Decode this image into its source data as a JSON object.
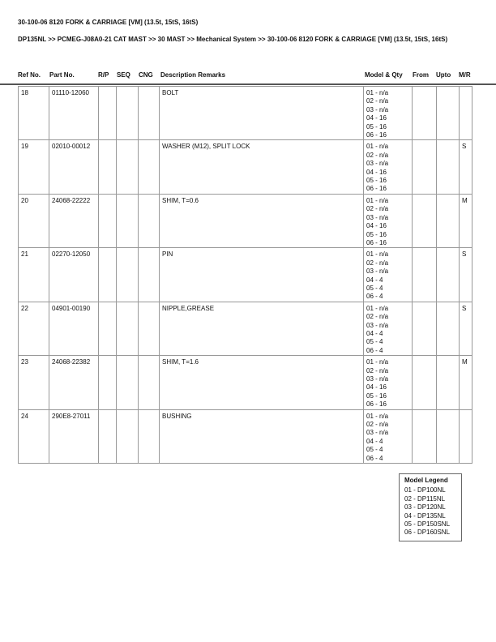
{
  "title": "30-100-06 8120 FORK & CARRIAGE [VM] (13.5t, 15tS, 16tS)",
  "breadcrumb": "DP135NL >> PCMEG-J08A0-21 CAT MAST >> 30 MAST >> Mechanical System >> 30-100-06 8120 FORK & CARRIAGE [VM] (13.5t, 15tS, 16tS)",
  "columns": [
    "Ref No.",
    "Part No.",
    "R/P",
    "SEQ",
    "CNG",
    "Description Remarks",
    "Model & Qty",
    "From",
    "Upto",
    "M/R"
  ],
  "rows": [
    {
      "ref": "18",
      "part": "01110-12060",
      "desc": "BOLT",
      "qty": [
        "01 - n/a",
        "02 - n/a",
        "03 - n/a",
        "04 - 16",
        "05 - 16",
        "06 - 16"
      ],
      "mr": ""
    },
    {
      "ref": "19",
      "part": "02010-00012",
      "desc": "WASHER (M12), SPLIT LOCK",
      "qty": [
        "01 - n/a",
        "02 - n/a",
        "03 - n/a",
        "04 - 16",
        "05 - 16",
        "06 - 16"
      ],
      "mr": "S"
    },
    {
      "ref": "20",
      "part": "24068-22222",
      "desc": "SHIM, T=0.6",
      "qty": [
        "01 - n/a",
        "02 - n/a",
        "03 - n/a",
        "04 - 16",
        "05 - 16",
        "06 - 16"
      ],
      "mr": "M"
    },
    {
      "ref": "21",
      "part": "02270-12050",
      "desc": "PIN",
      "qty": [
        "01 - n/a",
        "02 - n/a",
        "03 - n/a",
        "04 - 4",
        "05 - 4",
        "06 - 4"
      ],
      "mr": "S"
    },
    {
      "ref": "22",
      "part": "04901-00190",
      "desc": "NIPPLE,GREASE",
      "qty": [
        "01 - n/a",
        "02 - n/a",
        "03 - n/a",
        "04 - 4",
        "05 - 4",
        "06 - 4"
      ],
      "mr": "S"
    },
    {
      "ref": "23",
      "part": "24068-22382",
      "desc": "SHIM, T=1.6",
      "qty": [
        "01 - n/a",
        "02 - n/a",
        "03 - n/a",
        "04 - 16",
        "05 - 16",
        "06 - 16"
      ],
      "mr": "M"
    },
    {
      "ref": "24",
      "part": "290E8-27011",
      "desc": "BUSHING",
      "qty": [
        "01 - n/a",
        "02 - n/a",
        "03 - n/a",
        "04 - 4",
        "05 - 4",
        "06 - 4"
      ],
      "mr": ""
    }
  ],
  "legend": {
    "title": "Model Legend",
    "items": [
      "01 - DP100NL",
      "02 - DP115NL",
      "03 - DP120NL",
      "04 - DP135NL",
      "05 - DP150SNL",
      "06 - DP160SNL"
    ]
  }
}
